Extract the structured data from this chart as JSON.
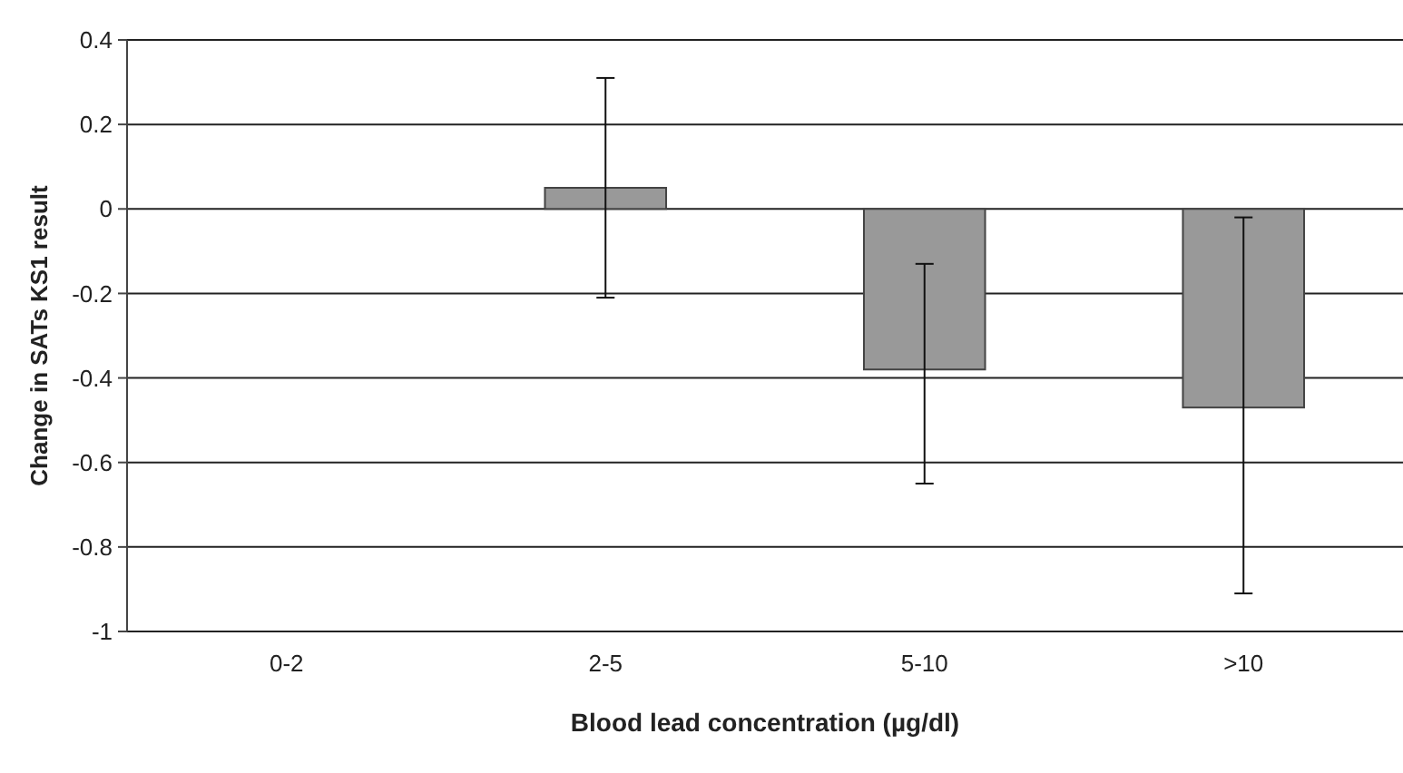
{
  "chart_data": {
    "type": "bar",
    "xlabel": "Blood lead concentration (µg/dl)",
    "ylabel": "Change in SATs KS1 result",
    "categories": [
      "0-2",
      "2-5",
      "5-10",
      ">10"
    ],
    "values": [
      0,
      0.05,
      -0.38,
      -0.47
    ],
    "errors": [
      null,
      [
        -0.21,
        0.31
      ],
      [
        -0.65,
        -0.13
      ],
      [
        -0.91,
        -0.02
      ]
    ],
    "color": "#999999",
    "ylim": [
      -1,
      0.4
    ],
    "yticks": [
      {
        "value": -1,
        "label": "-1"
      },
      {
        "value": -0.8,
        "label": "-0.8"
      },
      {
        "value": -0.6,
        "label": "-0.6"
      },
      {
        "value": -0.4,
        "label": "-0.4"
      },
      {
        "value": -0.2,
        "label": "-0.2"
      },
      {
        "value": 0,
        "label": "0"
      },
      {
        "value": 0.2,
        "label": "0.2"
      },
      {
        "value": 0.4,
        "label": "0.4"
      }
    ],
    "grid": "y"
  }
}
